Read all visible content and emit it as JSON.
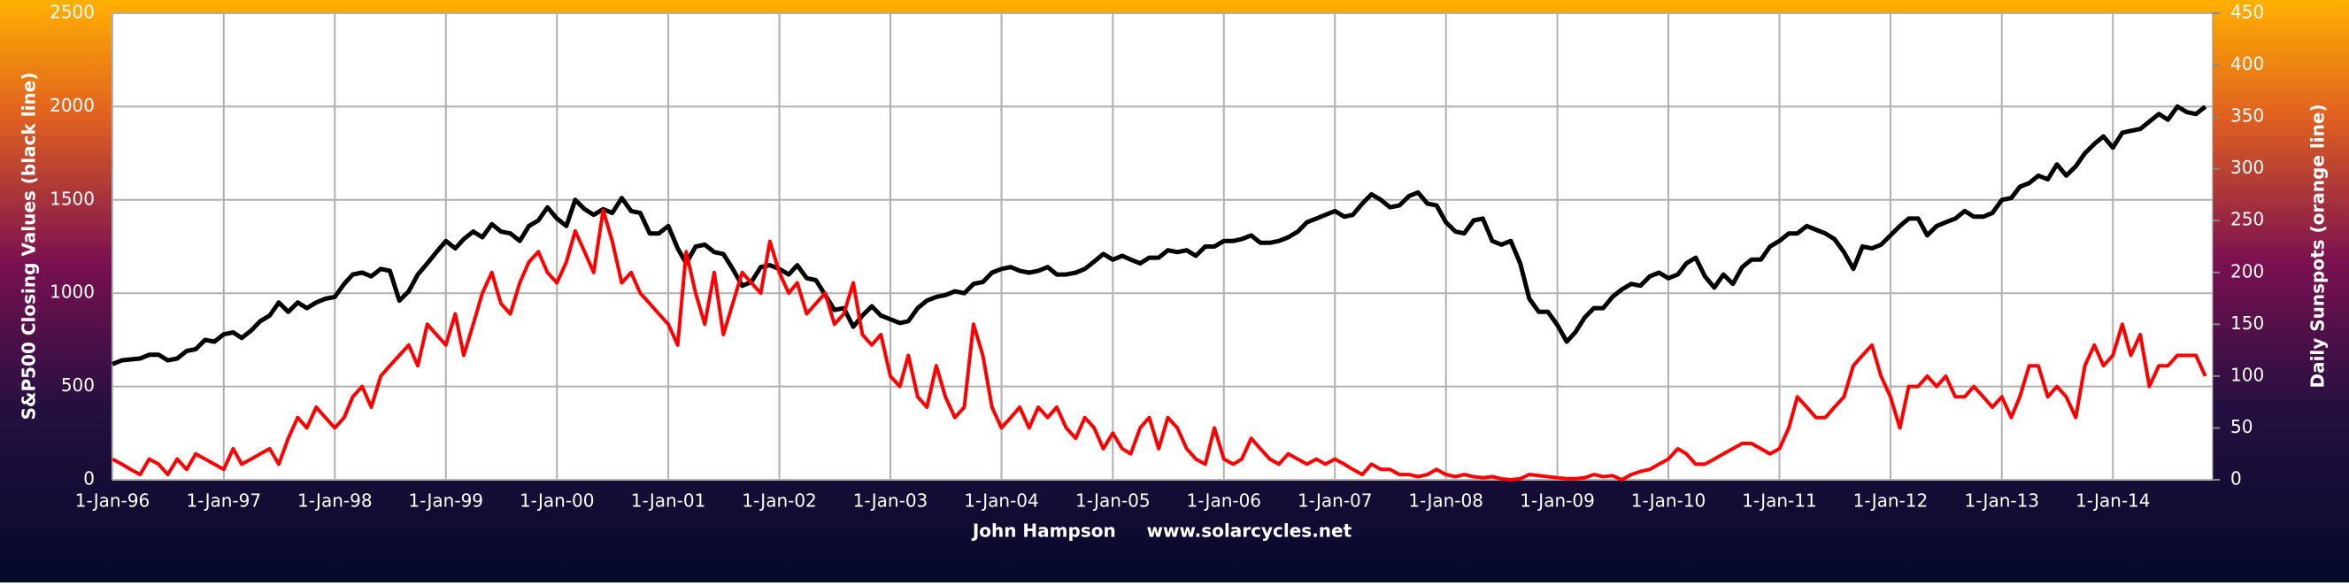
{
  "chart_data": {
    "type": "line",
    "y_label": "S&P500 Closing Values (black line)",
    "y2_label": "Daily Sunspots (orange line)",
    "x_label": "John Hampson     www.solarcycles.net",
    "x": [
      "1996-01-01",
      "1996-02-01",
      "1996-03-01",
      "1996-04-01",
      "1996-05-01",
      "1996-06-01",
      "1996-07-01",
      "1996-08-01",
      "1996-09-01",
      "1996-10-01",
      "1996-11-01",
      "1996-12-01",
      "1997-01-01",
      "1997-02-01",
      "1997-03-01",
      "1997-04-01",
      "1997-05-01",
      "1997-06-01",
      "1997-07-01",
      "1997-08-01",
      "1997-09-01",
      "1997-10-01",
      "1997-11-01",
      "1997-12-01",
      "1998-01-01",
      "1998-02-01",
      "1998-03-01",
      "1998-04-01",
      "1998-05-01",
      "1998-06-01",
      "1998-07-01",
      "1998-08-01",
      "1998-09-01",
      "1998-10-01",
      "1998-11-01",
      "1998-12-01",
      "1999-01-01",
      "1999-02-01",
      "1999-03-01",
      "1999-04-01",
      "1999-05-01",
      "1999-06-01",
      "1999-07-01",
      "1999-08-01",
      "1999-09-01",
      "1999-10-01",
      "1999-11-01",
      "1999-12-01",
      "2000-01-01",
      "2000-02-01",
      "2000-03-01",
      "2000-04-01",
      "2000-05-01",
      "2000-06-01",
      "2000-07-01",
      "2000-08-01",
      "2000-09-01",
      "2000-10-01",
      "2000-11-01",
      "2000-12-01",
      "2001-01-01",
      "2001-02-01",
      "2001-03-01",
      "2001-04-01",
      "2001-05-01",
      "2001-06-01",
      "2001-07-01",
      "2001-08-01",
      "2001-09-01",
      "2001-10-01",
      "2001-11-01",
      "2001-12-01",
      "2002-01-01",
      "2002-02-01",
      "2002-03-01",
      "2002-04-01",
      "2002-05-01",
      "2002-06-01",
      "2002-07-01",
      "2002-08-01",
      "2002-09-01",
      "2002-10-01",
      "2002-11-01",
      "2002-12-01",
      "2003-01-01",
      "2003-02-01",
      "2003-03-01",
      "2003-04-01",
      "2003-05-01",
      "2003-06-01",
      "2003-07-01",
      "2003-08-01",
      "2003-09-01",
      "2003-10-01",
      "2003-11-01",
      "2003-12-01",
      "2004-01-01",
      "2004-02-01",
      "2004-03-01",
      "2004-04-01",
      "2004-05-01",
      "2004-06-01",
      "2004-07-01",
      "2004-08-01",
      "2004-09-01",
      "2004-10-01",
      "2004-11-01",
      "2004-12-01",
      "2005-01-01",
      "2005-02-01",
      "2005-03-01",
      "2005-04-01",
      "2005-05-01",
      "2005-06-01",
      "2005-07-01",
      "2005-08-01",
      "2005-09-01",
      "2005-10-01",
      "2005-11-01",
      "2005-12-01",
      "2006-01-01",
      "2006-02-01",
      "2006-03-01",
      "2006-04-01",
      "2006-05-01",
      "2006-06-01",
      "2006-07-01",
      "2006-08-01",
      "2006-09-01",
      "2006-10-01",
      "2006-11-01",
      "2006-12-01",
      "2007-01-01",
      "2007-02-01",
      "2007-03-01",
      "2007-04-01",
      "2007-05-01",
      "2007-06-01",
      "2007-07-01",
      "2007-08-01",
      "2007-09-01",
      "2007-10-01",
      "2007-11-01",
      "2007-12-01",
      "2008-01-01",
      "2008-02-01",
      "2008-03-01",
      "2008-04-01",
      "2008-05-01",
      "2008-06-01",
      "2008-07-01",
      "2008-08-01",
      "2008-09-01",
      "2008-10-01",
      "2008-11-01",
      "2008-12-01",
      "2009-01-01",
      "2009-02-01",
      "2009-03-01",
      "2009-04-01",
      "2009-05-01",
      "2009-06-01",
      "2009-07-01",
      "2009-08-01",
      "2009-09-01",
      "2009-10-01",
      "2009-11-01",
      "2009-12-01",
      "2010-01-01",
      "2010-02-01",
      "2010-03-01",
      "2010-04-01",
      "2010-05-01",
      "2010-06-01",
      "2010-07-01",
      "2010-08-01",
      "2010-09-01",
      "2010-10-01",
      "2010-11-01",
      "2010-12-01",
      "2011-01-01",
      "2011-02-01",
      "2011-03-01",
      "2011-04-01",
      "2011-05-01",
      "2011-06-01",
      "2011-07-01",
      "2011-08-01",
      "2011-09-01",
      "2011-10-01",
      "2011-11-01",
      "2011-12-01",
      "2012-01-01",
      "2012-02-01",
      "2012-03-01",
      "2012-04-01",
      "2012-05-01",
      "2012-06-01",
      "2012-07-01",
      "2012-08-01",
      "2012-09-01",
      "2012-10-01",
      "2012-11-01",
      "2012-12-01",
      "2013-01-01",
      "2013-02-01",
      "2013-03-01",
      "2013-04-01",
      "2013-05-01",
      "2013-06-01",
      "2013-07-01",
      "2013-08-01",
      "2013-09-01",
      "2013-10-01",
      "2013-11-01",
      "2013-12-01",
      "2014-01-01",
      "2014-02-01",
      "2014-03-01",
      "2014-04-01",
      "2014-05-01",
      "2014-06-01",
      "2014-07-01",
      "2014-08-01",
      "2014-09-01",
      "2014-10-01",
      "2014-11-01"
    ],
    "series": [
      {
        "color": "#000000",
        "axis": "y",
        "values": [
          620,
          640,
          645,
          650,
          670,
          670,
          640,
          650,
          690,
          700,
          750,
          740,
          780,
          790,
          760,
          800,
          850,
          880,
          950,
          900,
          950,
          920,
          950,
          970,
          980,
          1050,
          1100,
          1110,
          1090,
          1130,
          1120,
          960,
          1010,
          1100,
          1160,
          1220,
          1280,
          1240,
          1290,
          1330,
          1300,
          1370,
          1330,
          1320,
          1280,
          1360,
          1390,
          1460,
          1400,
          1360,
          1500,
          1450,
          1420,
          1450,
          1430,
          1510,
          1440,
          1430,
          1320,
          1320,
          1360,
          1240,
          1160,
          1250,
          1260,
          1220,
          1210,
          1130,
          1040,
          1060,
          1140,
          1150,
          1130,
          1100,
          1150,
          1080,
          1070,
          990,
          910,
          920,
          820,
          880,
          930,
          880,
          860,
          840,
          850,
          920,
          960,
          980,
          990,
          1010,
          1000,
          1050,
          1060,
          1110,
          1130,
          1140,
          1120,
          1110,
          1120,
          1140,
          1100,
          1100,
          1110,
          1130,
          1170,
          1210,
          1180,
          1200,
          1180,
          1160,
          1190,
          1190,
          1230,
          1220,
          1230,
          1200,
          1250,
          1250,
          1280,
          1280,
          1290,
          1310,
          1270,
          1270,
          1280,
          1300,
          1330,
          1380,
          1400,
          1420,
          1440,
          1410,
          1420,
          1480,
          1530,
          1500,
          1460,
          1470,
          1520,
          1540,
          1480,
          1470,
          1380,
          1330,
          1320,
          1390,
          1400,
          1280,
          1260,
          1280,
          1160,
          970,
          900,
          900,
          830,
          740,
          790,
          870,
          920,
          920,
          980,
          1020,
          1050,
          1040,
          1090,
          1110,
          1080,
          1100,
          1160,
          1190,
          1090,
          1030,
          1100,
          1050,
          1140,
          1180,
          1180,
          1250,
          1280,
          1320,
          1320,
          1360,
          1340,
          1320,
          1290,
          1220,
          1130,
          1250,
          1240,
          1260,
          1310,
          1360,
          1400,
          1400,
          1310,
          1360,
          1380,
          1400,
          1440,
          1410,
          1410,
          1430,
          1500,
          1510,
          1570,
          1590,
          1630,
          1610,
          1690,
          1630,
          1680,
          1750,
          1800,
          1840,
          1780,
          1860,
          1870,
          1880,
          1920,
          1960,
          1930,
          2000,
          1970,
          1960,
          2000
        ]
      },
      {
        "color": "#ff0000",
        "axis": "y2",
        "values": [
          20,
          15,
          10,
          5,
          20,
          15,
          5,
          20,
          10,
          25,
          20,
          15,
          10,
          30,
          15,
          20,
          25,
          30,
          15,
          40,
          60,
          50,
          70,
          60,
          50,
          60,
          80,
          90,
          70,
          100,
          110,
          120,
          130,
          110,
          150,
          140,
          130,
          160,
          120,
          150,
          180,
          200,
          170,
          160,
          190,
          210,
          220,
          200,
          190,
          210,
          240,
          220,
          200,
          260,
          230,
          190,
          200,
          180,
          170,
          160,
          150,
          130,
          220,
          180,
          150,
          200,
          140,
          170,
          200,
          190,
          180,
          230,
          200,
          180,
          190,
          160,
          170,
          180,
          150,
          160,
          190,
          140,
          130,
          140,
          100,
          90,
          120,
          80,
          70,
          110,
          80,
          60,
          70,
          150,
          120,
          70,
          50,
          60,
          70,
          50,
          70,
          60,
          70,
          50,
          40,
          60,
          50,
          30,
          45,
          30,
          25,
          50,
          60,
          30,
          60,
          50,
          30,
          20,
          15,
          50,
          20,
          15,
          20,
          40,
          30,
          20,
          15,
          25,
          20,
          15,
          20,
          15,
          20,
          15,
          10,
          5,
          15,
          10,
          10,
          5,
          5,
          3,
          5,
          10,
          5,
          3,
          5,
          3,
          2,
          3,
          1,
          0,
          1,
          5,
          4,
          3,
          2,
          1,
          1,
          2,
          5,
          3,
          4,
          0,
          5,
          8,
          10,
          15,
          20,
          30,
          25,
          15,
          15,
          20,
          25,
          30,
          35,
          35,
          30,
          25,
          30,
          50,
          80,
          70,
          60,
          60,
          70,
          80,
          110,
          120,
          130,
          100,
          80,
          50,
          90,
          90,
          100,
          90,
          100,
          80,
          80,
          90,
          80,
          70,
          80,
          60,
          80,
          110,
          110,
          80,
          90,
          80,
          60,
          110,
          130,
          110,
          120,
          150,
          120,
          140,
          90,
          110,
          110,
          120,
          120,
          120,
          100
        ]
      }
    ],
    "xlim": [
      "1996-01-01",
      "2014-11-25"
    ],
    "xticks": [
      {
        "value": "1996-01-01",
        "label": "1-Jan-96"
      },
      {
        "value": "1997-01-01",
        "label": "1-Jan-97"
      },
      {
        "value": "1998-01-01",
        "label": "1-Jan-98"
      },
      {
        "value": "1999-01-01",
        "label": "1-Jan-99"
      },
      {
        "value": "2000-01-01",
        "label": "1-Jan-00"
      },
      {
        "value": "2001-01-01",
        "label": "1-Jan-01"
      },
      {
        "value": "2002-01-01",
        "label": "1-Jan-02"
      },
      {
        "value": "2003-01-01",
        "label": "1-Jan-03"
      },
      {
        "value": "2004-01-01",
        "label": "1-Jan-04"
      },
      {
        "value": "2005-01-01",
        "label": "1-Jan-05"
      },
      {
        "value": "2006-01-01",
        "label": "1-Jan-06"
      },
      {
        "value": "2007-01-01",
        "label": "1-Jan-07"
      },
      {
        "value": "2008-01-01",
        "label": "1-Jan-08"
      },
      {
        "value": "2009-01-01",
        "label": "1-Jan-09"
      },
      {
        "value": "2010-01-01",
        "label": "1-Jan-10"
      },
      {
        "value": "2011-01-01",
        "label": "1-Jan-11"
      },
      {
        "value": "2012-01-01",
        "label": "1-Jan-12"
      },
      {
        "value": "2013-01-01",
        "label": "1-Jan-13"
      },
      {
        "value": "2014-01-01",
        "label": "1-Jan-14"
      }
    ],
    "ylim": [
      0,
      2500
    ],
    "yticks": [
      0,
      500,
      1000,
      1500,
      2000,
      2500
    ],
    "y2lim": [
      0,
      450
    ],
    "y2ticks": [
      0,
      50,
      100,
      150,
      200,
      250,
      300,
      350,
      400,
      450
    ],
    "grid": true
  }
}
